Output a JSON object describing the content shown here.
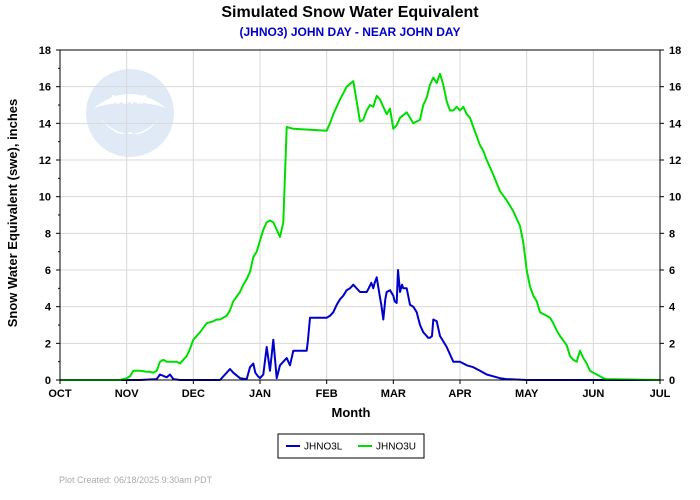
{
  "chart_data": {
    "type": "line",
    "title": "Simulated Snow Water Equivalent",
    "subtitle": "(JHNO3) JOHN DAY - NEAR JOHN DAY",
    "xlabel": "Month",
    "ylabel": "Snow Water Equivalent (swe),  inches",
    "ylim": [
      0,
      18
    ],
    "yticks": [
      0,
      2,
      4,
      6,
      8,
      10,
      12,
      14,
      16,
      18
    ],
    "xlim": [
      0,
      9
    ],
    "categories": [
      "OCT",
      "NOV",
      "DEC",
      "JAN",
      "FEB",
      "MAR",
      "APR",
      "MAY",
      "JUN",
      "JUL"
    ],
    "grid": true,
    "legend_position": "bottom-center",
    "footer": "Plot Created:  06/18/2025 9:30am PDT",
    "watermark": "NOAA",
    "series": [
      {
        "name": "JHNO3L",
        "color": "#0000cc",
        "x": [
          0,
          1.2,
          1.45,
          1.5,
          1.6,
          1.65,
          1.7,
          1.8,
          1.9,
          2.4,
          2.5,
          2.55,
          2.6,
          2.7,
          2.8,
          2.85,
          2.9,
          2.93,
          2.97,
          3.0,
          3.05,
          3.1,
          3.15,
          3.2,
          3.25,
          3.3,
          3.35,
          3.4,
          3.45,
          3.5,
          3.55,
          3.6,
          3.65,
          3.7,
          3.72,
          3.75,
          3.8,
          3.85,
          3.9,
          4.0,
          4.05,
          4.1,
          4.15,
          4.2,
          4.25,
          4.3,
          4.35,
          4.4,
          4.5,
          4.55,
          4.6,
          4.63,
          4.67,
          4.7,
          4.72,
          4.75,
          4.8,
          4.82,
          4.85,
          4.88,
          4.9,
          4.95,
          5.0,
          5.02,
          5.05,
          5.07,
          5.1,
          5.13,
          5.15,
          5.2,
          5.25,
          5.3,
          5.35,
          5.4,
          5.45,
          5.5,
          5.52,
          5.55,
          5.58,
          5.6,
          5.65,
          5.7,
          5.8,
          5.9,
          6.0,
          6.1,
          6.2,
          6.3,
          6.4,
          6.5,
          6.6,
          6.7,
          7.0,
          7.2,
          9.0
        ],
        "y": [
          0,
          0,
          0.05,
          0.3,
          0.15,
          0.3,
          0.05,
          0,
          0,
          0,
          0.4,
          0.6,
          0.4,
          0.1,
          0.05,
          0.7,
          0.9,
          0.4,
          0.2,
          0.1,
          0.3,
          1.8,
          0.5,
          2.2,
          0.1,
          0.8,
          1.0,
          1.2,
          0.8,
          1.6,
          1.6,
          1.6,
          1.6,
          1.6,
          2.2,
          3.4,
          3.4,
          3.4,
          3.4,
          3.4,
          3.5,
          3.7,
          4.1,
          4.4,
          4.6,
          4.9,
          5.0,
          5.2,
          4.8,
          4.8,
          4.8,
          5.0,
          5.3,
          5.0,
          5.3,
          5.6,
          4.5,
          4.1,
          3.3,
          4.4,
          4.8,
          4.9,
          4.6,
          4.3,
          4.2,
          6.0,
          4.8,
          5.2,
          5.0,
          5.0,
          4.1,
          4.0,
          3.7,
          3.0,
          2.6,
          2.4,
          2.3,
          2.3,
          2.4,
          3.3,
          3.2,
          2.4,
          1.8,
          1.0,
          1.0,
          0.8,
          0.7,
          0.5,
          0.3,
          0.2,
          0.1,
          0.05,
          0,
          0,
          0
        ]
      },
      {
        "name": "JHNO3U",
        "color": "#00dd00",
        "x": [
          0,
          0.9,
          0.95,
          1.0,
          1.05,
          1.1,
          1.2,
          1.3,
          1.35,
          1.4,
          1.45,
          1.5,
          1.55,
          1.6,
          1.65,
          1.7,
          1.75,
          1.8,
          1.85,
          1.9,
          1.95,
          2.0,
          2.1,
          2.2,
          2.3,
          2.35,
          2.4,
          2.5,
          2.55,
          2.6,
          2.7,
          2.75,
          2.8,
          2.85,
          2.9,
          2.95,
          3.0,
          3.05,
          3.1,
          3.15,
          3.2,
          3.25,
          3.3,
          3.35,
          3.4,
          3.5,
          4.0,
          4.05,
          4.1,
          4.2,
          4.3,
          4.4,
          4.45,
          4.5,
          4.55,
          4.6,
          4.65,
          4.7,
          4.75,
          4.8,
          4.85,
          4.9,
          4.95,
          5.0,
          5.05,
          5.1,
          5.2,
          5.3,
          5.4,
          5.45,
          5.5,
          5.55,
          5.6,
          5.65,
          5.7,
          5.75,
          5.8,
          5.85,
          5.9,
          5.95,
          6.0,
          6.05,
          6.1,
          6.15,
          6.2,
          6.25,
          6.3,
          6.35,
          6.4,
          6.45,
          6.5,
          6.6,
          6.7,
          6.8,
          6.85,
          6.9,
          6.95,
          7.0,
          7.05,
          7.1,
          7.15,
          7.2,
          7.3,
          7.35,
          7.4,
          7.45,
          7.5,
          7.6,
          7.65,
          7.7,
          7.75,
          7.8,
          7.85,
          7.9,
          7.95,
          8.0,
          8.05,
          8.1,
          8.15,
          8.2,
          9.0
        ],
        "y": [
          0,
          0,
          0.05,
          0.1,
          0.2,
          0.5,
          0.5,
          0.45,
          0.45,
          0.4,
          0.5,
          1.0,
          1.1,
          1.0,
          1.0,
          1.0,
          1.0,
          0.9,
          1.1,
          1.3,
          1.7,
          2.2,
          2.6,
          3.1,
          3.2,
          3.3,
          3.3,
          3.5,
          3.8,
          4.3,
          4.8,
          5.2,
          5.5,
          5.9,
          6.7,
          7.0,
          7.6,
          8.2,
          8.6,
          8.7,
          8.6,
          8.2,
          7.8,
          8.6,
          13.8,
          13.7,
          13.6,
          14.0,
          14.5,
          15.3,
          16.0,
          16.3,
          15.2,
          14.1,
          14.2,
          14.7,
          15.0,
          14.9,
          15.5,
          15.3,
          14.9,
          14.5,
          14.8,
          13.7,
          13.9,
          14.3,
          14.6,
          14.0,
          14.2,
          15.0,
          15.4,
          16.1,
          16.5,
          16.2,
          16.7,
          16.1,
          15.2,
          14.7,
          14.7,
          14.9,
          14.7,
          14.9,
          14.5,
          14.3,
          13.8,
          13.3,
          12.8,
          12.5,
          12.0,
          11.6,
          11.2,
          10.3,
          9.8,
          9.2,
          8.8,
          8.4,
          7.5,
          6.0,
          5.1,
          4.6,
          4.3,
          3.7,
          3.5,
          3.4,
          3.1,
          2.7,
          2.4,
          1.9,
          1.3,
          1.1,
          1.0,
          1.6,
          1.2,
          0.9,
          0.5,
          0.4,
          0.3,
          0.2,
          0.1,
          0.05,
          0
        ]
      }
    ]
  }
}
